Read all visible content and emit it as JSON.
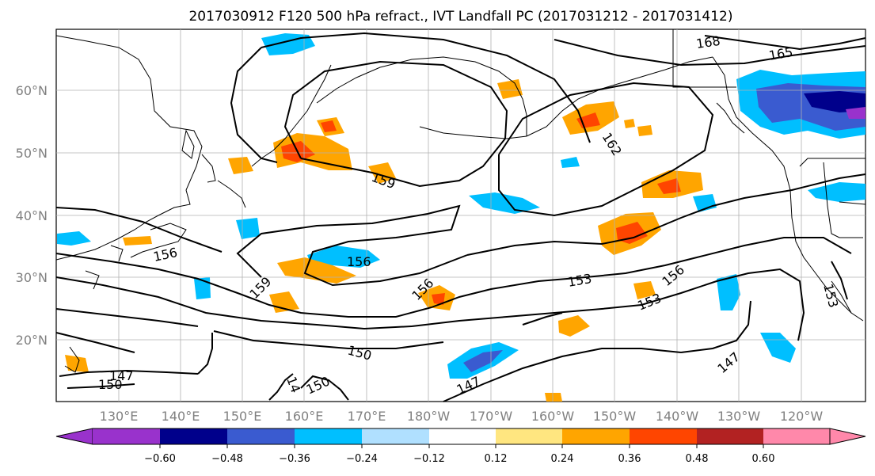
{
  "title": "2017030912 F120 500 hPa refract., IVT Landfall PC (2017031212 - 2017031412)",
  "map": {
    "lon_labels": [
      "130°E",
      "140°E",
      "150°E",
      "160°E",
      "170°E",
      "180°W",
      "170°W",
      "160°W",
      "150°W",
      "140°W",
      "130°W",
      "120°W"
    ],
    "lat_labels": [
      "60°N",
      "50°N",
      "40°N",
      "30°N",
      "20°N"
    ],
    "contour_labels": [
      "168",
      "165",
      "162",
      "159",
      "156",
      "156",
      "156",
      "156",
      "159",
      "153",
      "153",
      "153",
      "150",
      "150",
      "150",
      "147",
      "147",
      "147",
      "14"
    ],
    "contour_color": "#000000",
    "grid": true
  },
  "colorbar": {
    "ticks": [
      "−0.60",
      "−0.48",
      "−0.36",
      "−0.24",
      "−0.12",
      "0.12",
      "0.24",
      "0.36",
      "0.48",
      "0.60"
    ],
    "colors": [
      "#9932cc",
      "#00008b",
      "#3a5bd0",
      "#00bfff",
      "#b0e0ff",
      "#ffffff",
      "#ffe680",
      "#ffa500",
      "#ff4500",
      "#b22222",
      "#ff88aa"
    ],
    "extend": "both"
  }
}
